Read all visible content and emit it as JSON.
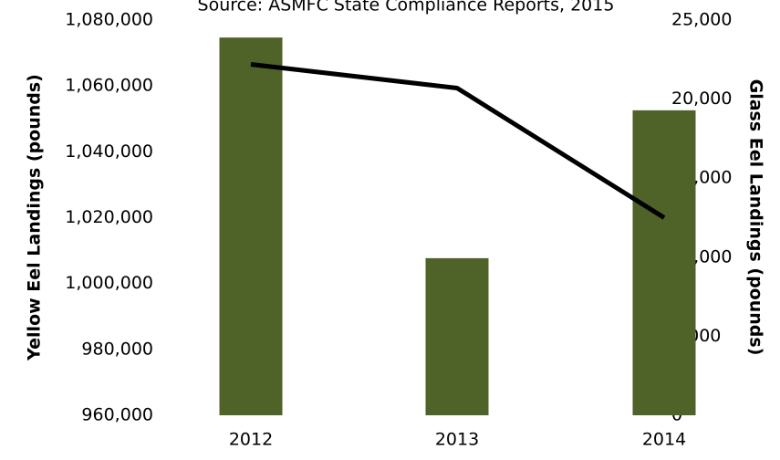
{
  "chart_data": {
    "type": "bar",
    "subtitle": "Source: ASMFC State Compliance Reports, 2015",
    "y_label": "Yellow Eel Landings (pounds)",
    "y2_label": "Glass Eel Landings (pounds)",
    "categories": [
      "2012",
      "2013",
      "2014"
    ],
    "series": [
      {
        "type": "bar",
        "color": "#4f6228",
        "values": [
          1074700,
          1007700,
          1052600
        ]
      },
      {
        "type": "line",
        "color": "#000000",
        "axis": "y2",
        "values": [
          22200,
          20700,
          12500
        ]
      }
    ],
    "ylim": [
      960000,
      1080000
    ],
    "yticks": [
      {
        "value": 960000,
        "label": "960,000"
      },
      {
        "value": 980000,
        "label": "980,000"
      },
      {
        "value": 1000000,
        "label": "1,000,000"
      },
      {
        "value": 1020000,
        "label": "1,020,000"
      },
      {
        "value": 1040000,
        "label": "1,040,000"
      },
      {
        "value": 1060000,
        "label": "1,060,000"
      },
      {
        "value": 1080000,
        "label": "1,080,000"
      }
    ],
    "y2lim": [
      0,
      25000
    ],
    "y2ticks": [
      0,
      {
        "value": 5000,
        "label": "5,000"
      },
      {
        "value": 10000,
        "label": "10,000"
      },
      {
        "value": 15000,
        "label": "15,000"
      },
      {
        "value": 20000,
        "label": "20,000"
      },
      {
        "value": 25000,
        "label": "25,000"
      }
    ],
    "grid": false
  }
}
